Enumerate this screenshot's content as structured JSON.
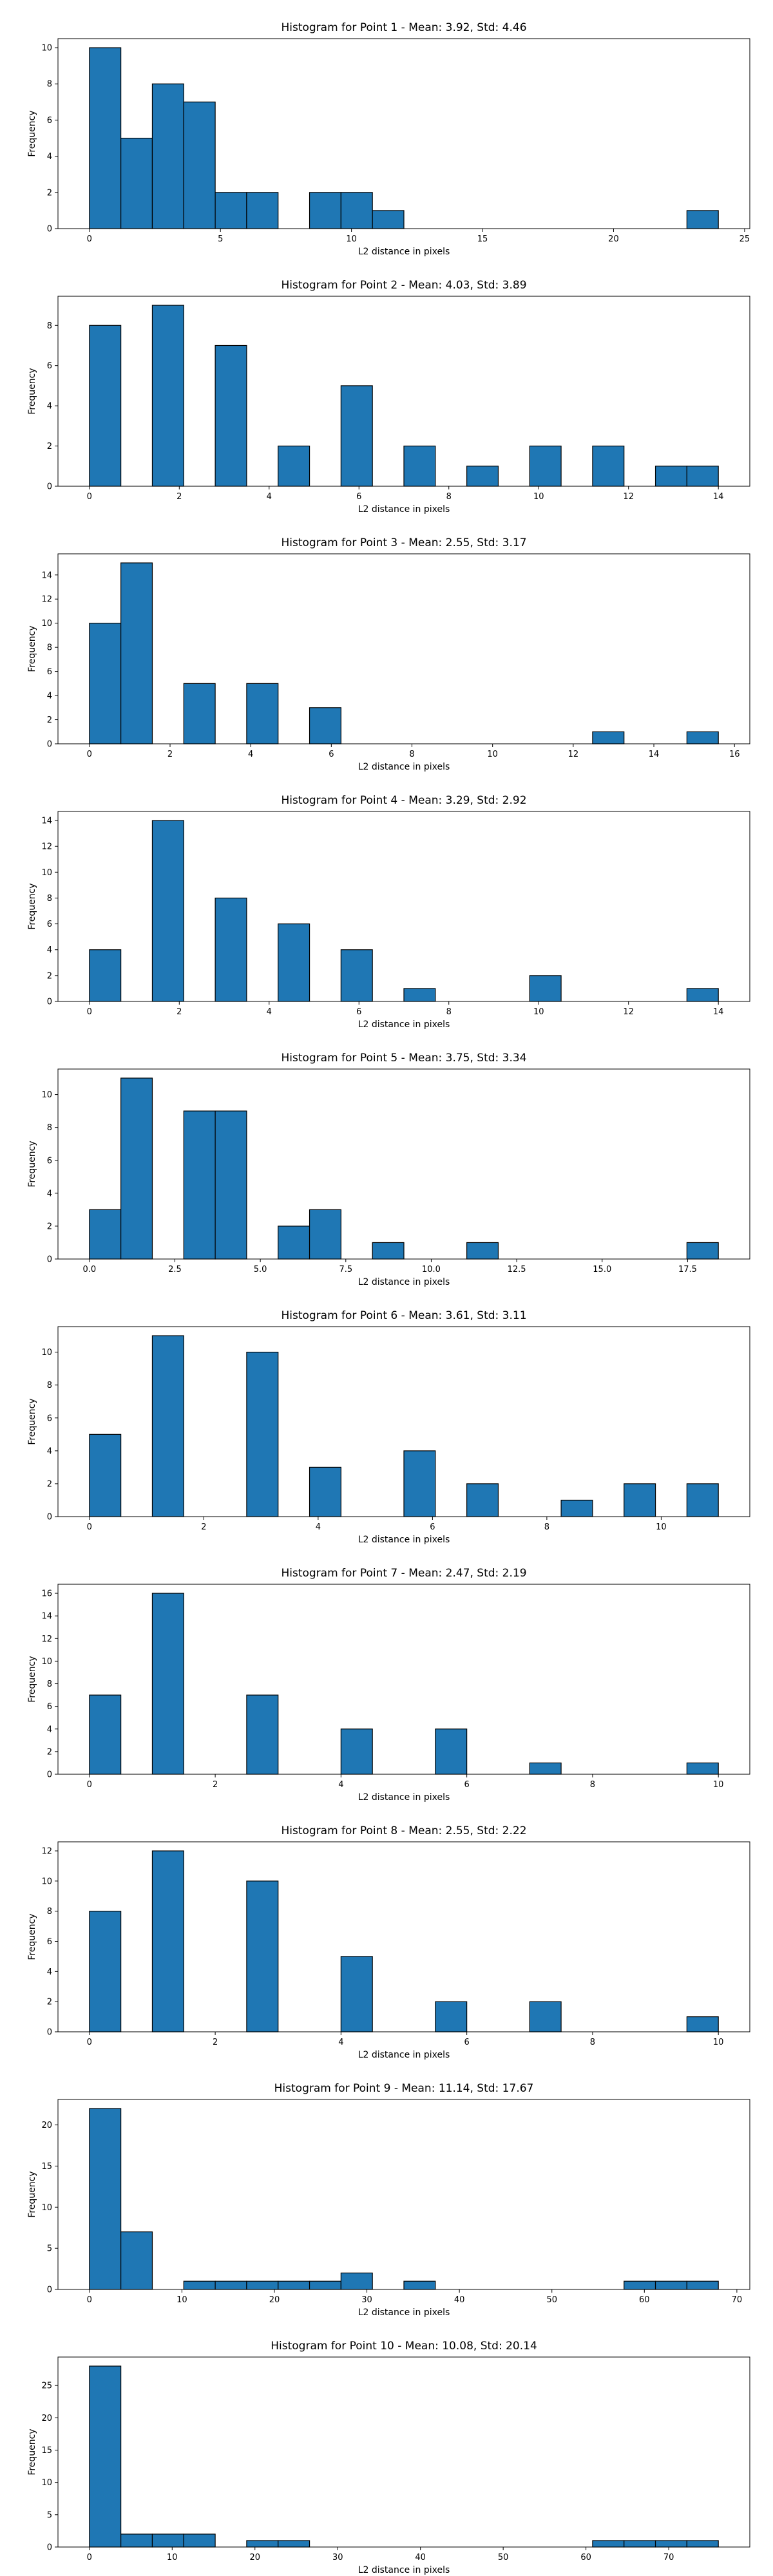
{
  "chart_data": [
    {
      "type": "bar",
      "title": "Histogram for Point 1 - Mean: 3.92, Std: 4.46",
      "xlabel": "L2 distance in pixels",
      "ylabel": "Frequency",
      "xlim": [
        -1.2,
        25.2
      ],
      "ylim": [
        0,
        10.5
      ],
      "xticks": [
        0,
        5,
        10,
        15,
        20,
        25
      ],
      "yticks": [
        0,
        2,
        4,
        6,
        8,
        10
      ],
      "bin_edges": [
        0,
        1.2,
        2.4,
        3.6,
        4.8,
        6.0,
        7.2,
        8.4,
        9.6,
        10.8,
        12.0,
        13.2,
        14.4,
        15.6,
        16.8,
        18.0,
        19.2,
        20.4,
        21.6,
        22.8,
        24.0
      ],
      "values": [
        10,
        5,
        8,
        7,
        2,
        2,
        0,
        2,
        2,
        1,
        0,
        0,
        0,
        0,
        0,
        0,
        0,
        0,
        0,
        1
      ]
    },
    {
      "type": "bar",
      "title": "Histogram for Point 2 - Mean: 4.03, Std: 3.89",
      "xlabel": "L2 distance in pixels",
      "ylabel": "Frequency",
      "xlim": [
        -0.7,
        14.7
      ],
      "ylim": [
        0,
        9.45
      ],
      "xticks": [
        0,
        2,
        4,
        6,
        8,
        10,
        12,
        14
      ],
      "yticks": [
        0,
        2,
        4,
        6,
        8
      ],
      "bin_edges": [
        0,
        0.7,
        1.4,
        2.1,
        2.8,
        3.5,
        4.2,
        4.9,
        5.6,
        6.3,
        7.0,
        7.7,
        8.4,
        9.1,
        9.8,
        10.5,
        11.2,
        11.9,
        12.6,
        13.3,
        14.0
      ],
      "values": [
        8,
        0,
        9,
        0,
        7,
        0,
        2,
        0,
        5,
        0,
        2,
        0,
        1,
        0,
        2,
        0,
        2,
        0,
        1,
        1
      ]
    },
    {
      "type": "bar",
      "title": "Histogram for Point 3 - Mean: 2.55, Std: 3.17",
      "xlabel": "L2 distance in pixels",
      "ylabel": "Frequency",
      "xlim": [
        -0.78,
        16.38
      ],
      "ylim": [
        0,
        15.75
      ],
      "xticks": [
        0,
        2,
        4,
        6,
        8,
        10,
        12,
        14,
        16
      ],
      "yticks": [
        0,
        2,
        4,
        6,
        8,
        10,
        12,
        14
      ],
      "bin_edges": [
        0,
        0.78,
        1.56,
        2.34,
        3.12,
        3.9,
        4.68,
        5.46,
        6.24,
        7.02,
        7.8,
        8.58,
        9.36,
        10.14,
        10.92,
        11.7,
        12.48,
        13.26,
        14.04,
        14.82,
        15.6
      ],
      "values": [
        10,
        15,
        0,
        5,
        0,
        5,
        0,
        3,
        0,
        0,
        0,
        0,
        0,
        0,
        0,
        0,
        1,
        0,
        0,
        1
      ]
    },
    {
      "type": "bar",
      "title": "Histogram for Point 4 - Mean: 3.29, Std: 2.92",
      "xlabel": "L2 distance in pixels",
      "ylabel": "Frequency",
      "xlim": [
        -0.7,
        14.7
      ],
      "ylim": [
        0,
        14.7
      ],
      "xticks": [
        0,
        2,
        4,
        6,
        8,
        10,
        12,
        14
      ],
      "yticks": [
        0,
        2,
        4,
        6,
        8,
        10,
        12,
        14
      ],
      "bin_edges": [
        0,
        0.7,
        1.4,
        2.1,
        2.8,
        3.5,
        4.2,
        4.9,
        5.6,
        6.3,
        7.0,
        7.7,
        8.4,
        9.1,
        9.8,
        10.5,
        11.2,
        11.9,
        12.6,
        13.3,
        14.0
      ],
      "values": [
        4,
        0,
        14,
        0,
        8,
        0,
        6,
        0,
        4,
        0,
        1,
        0,
        0,
        0,
        2,
        0,
        0,
        0,
        0,
        1
      ]
    },
    {
      "type": "bar",
      "title": "Histogram for Point 5 - Mean: 3.75, Std: 3.34",
      "xlabel": "L2 distance in pixels",
      "ylabel": "Frequency",
      "xlim": [
        -0.92,
        19.32
      ],
      "ylim": [
        0,
        11.55
      ],
      "xticks": [
        0.0,
        2.5,
        5.0,
        7.5,
        10.0,
        12.5,
        15.0,
        17.5
      ],
      "yticks": [
        0,
        2,
        4,
        6,
        8,
        10
      ],
      "xtick_labels": [
        "0.0",
        "2.5",
        "5.0",
        "7.5",
        "10.0",
        "12.5",
        "15.0",
        "17.5"
      ],
      "bin_edges": [
        0,
        0.92,
        1.84,
        2.76,
        3.68,
        4.6,
        5.52,
        6.44,
        7.36,
        8.28,
        9.2,
        10.12,
        11.04,
        11.96,
        12.88,
        13.8,
        14.72,
        15.64,
        16.56,
        17.48,
        18.4
      ],
      "values": [
        3,
        11,
        0,
        9,
        9,
        0,
        2,
        3,
        0,
        1,
        0,
        0,
        1,
        0,
        0,
        0,
        0,
        0,
        0,
        1
      ]
    },
    {
      "type": "bar",
      "title": "Histogram for Point 6 - Mean: 3.61, Std: 3.11",
      "xlabel": "L2 distance in pixels",
      "ylabel": "Frequency",
      "xlim": [
        -0.55,
        11.55
      ],
      "ylim": [
        0,
        11.55
      ],
      "xticks": [
        0,
        2,
        4,
        6,
        8,
        10
      ],
      "yticks": [
        0,
        2,
        4,
        6,
        8,
        10
      ],
      "bin_edges": [
        0,
        0.55,
        1.1,
        1.65,
        2.2,
        2.75,
        3.3,
        3.85,
        4.4,
        4.95,
        5.5,
        6.05,
        6.6,
        7.15,
        7.7,
        8.25,
        8.8,
        9.35,
        9.9,
        10.45,
        11.0
      ],
      "values": [
        5,
        0,
        11,
        0,
        0,
        10,
        0,
        3,
        0,
        0,
        4,
        0,
        2,
        0,
        0,
        1,
        0,
        2,
        0,
        2
      ]
    },
    {
      "type": "bar",
      "title": "Histogram for Point 7 - Mean: 2.47, Std: 2.19",
      "xlabel": "L2 distance in pixels",
      "ylabel": "Frequency",
      "xlim": [
        -0.5,
        10.5
      ],
      "ylim": [
        0,
        16.8
      ],
      "xticks": [
        0,
        2,
        4,
        6,
        8,
        10
      ],
      "yticks": [
        0,
        2,
        4,
        6,
        8,
        10,
        12,
        14,
        16
      ],
      "bin_edges": [
        0,
        0.5,
        1.0,
        1.5,
        2.0,
        2.5,
        3.0,
        3.5,
        4.0,
        4.5,
        5.0,
        5.5,
        6.0,
        6.5,
        7.0,
        7.5,
        8.0,
        8.5,
        9.0,
        9.5,
        10.0
      ],
      "values": [
        7,
        0,
        16,
        0,
        0,
        7,
        0,
        0,
        4,
        0,
        0,
        4,
        0,
        0,
        1,
        0,
        0,
        0,
        0,
        1
      ]
    },
    {
      "type": "bar",
      "title": "Histogram for Point 8 - Mean: 2.55, Std: 2.22",
      "xlabel": "L2 distance in pixels",
      "ylabel": "Frequency",
      "xlim": [
        -0.5,
        10.5
      ],
      "ylim": [
        0,
        12.6
      ],
      "xticks": [
        0,
        2,
        4,
        6,
        8,
        10
      ],
      "yticks": [
        0,
        2,
        4,
        6,
        8,
        10,
        12
      ],
      "bin_edges": [
        0,
        0.5,
        1.0,
        1.5,
        2.0,
        2.5,
        3.0,
        3.5,
        4.0,
        4.5,
        5.0,
        5.5,
        6.0,
        6.5,
        7.0,
        7.5,
        8.0,
        8.5,
        9.0,
        9.5,
        10.0
      ],
      "values": [
        8,
        0,
        12,
        0,
        0,
        10,
        0,
        0,
        5,
        0,
        0,
        2,
        0,
        0,
        2,
        0,
        0,
        0,
        0,
        1
      ]
    },
    {
      "type": "bar",
      "title": "Histogram for Point 9 - Mean: 11.14, Std: 17.67",
      "xlabel": "L2 distance in pixels",
      "ylabel": "Frequency",
      "xlim": [
        -3.4,
        71.4
      ],
      "ylim": [
        0,
        23.1
      ],
      "xticks": [
        0,
        10,
        20,
        30,
        40,
        50,
        60,
        70
      ],
      "yticks": [
        0,
        5,
        10,
        15,
        20
      ],
      "bin_edges": [
        0,
        3.4,
        6.8,
        10.2,
        13.6,
        17.0,
        20.4,
        23.8,
        27.2,
        30.6,
        34.0,
        37.4,
        40.8,
        44.2,
        47.6,
        51.0,
        54.4,
        57.8,
        61.2,
        64.6,
        68.0
      ],
      "values": [
        22,
        7,
        0,
        1,
        1,
        1,
        1,
        1,
        2,
        0,
        1,
        0,
        0,
        0,
        0,
        0,
        0,
        1,
        1,
        1
      ]
    },
    {
      "type": "bar",
      "title": "Histogram for Point 10 - Mean: 10.08, Std: 20.14",
      "xlabel": "L2 distance in pixels",
      "ylabel": "Frequency",
      "xlim": [
        -3.8,
        79.8
      ],
      "ylim": [
        0,
        29.4
      ],
      "xticks": [
        0,
        10,
        20,
        30,
        40,
        50,
        60,
        70
      ],
      "yticks": [
        0,
        5,
        10,
        15,
        20,
        25
      ],
      "bin_edges": [
        0,
        3.8,
        7.6,
        11.4,
        15.2,
        19.0,
        22.8,
        26.6,
        30.4,
        34.2,
        38.0,
        41.8,
        45.6,
        49.4,
        53.2,
        57.0,
        60.8,
        64.6,
        68.4,
        72.2,
        76.0
      ],
      "values": [
        28,
        2,
        2,
        2,
        0,
        1,
        1,
        0,
        0,
        0,
        0,
        0,
        0,
        0,
        0,
        0,
        1,
        1,
        1,
        1
      ]
    }
  ]
}
